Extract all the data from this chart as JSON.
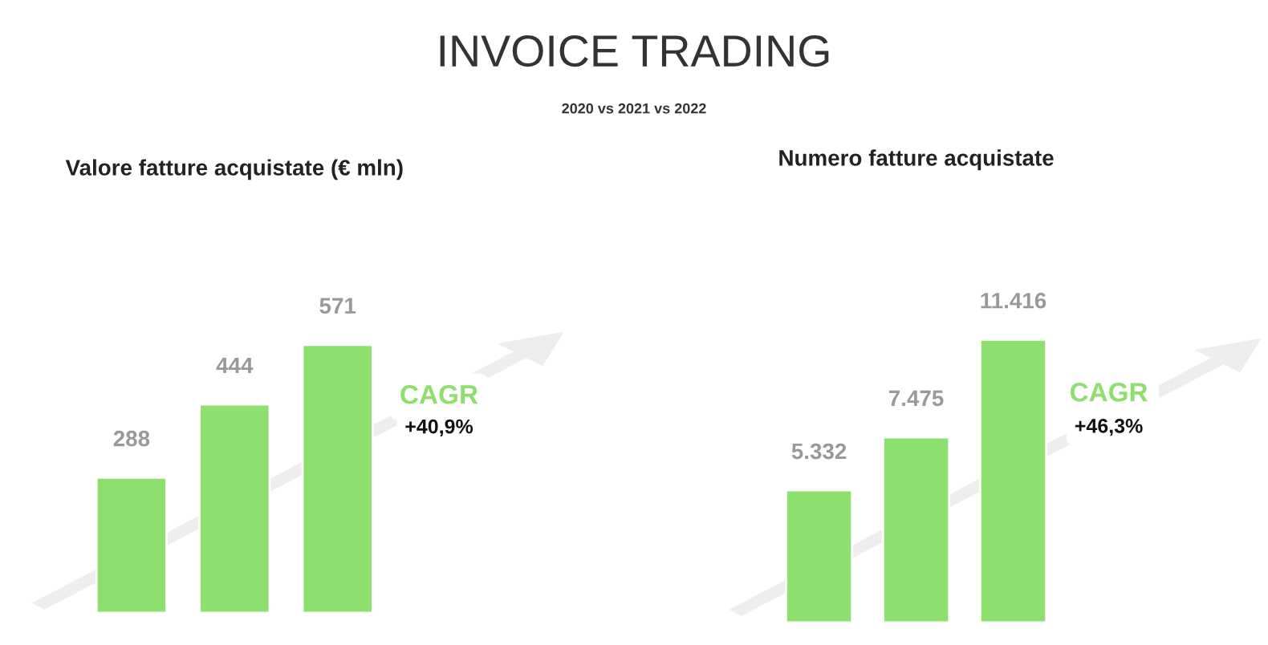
{
  "chart_data": [
    {
      "type": "other",
      "title": "INVOICE TRADING",
      "subtitle": "2020 vs 2021 vs 2022"
    },
    {
      "type": "bar",
      "title": "Valore fatture acquistate (€ mln)",
      "categories": [
        null,
        null,
        null
      ],
      "values": [
        288,
        444,
        571
      ],
      "color": "#8ee06e",
      "value_labels": [
        "288",
        "444",
        "571"
      ],
      "annotations": [
        "CAGR",
        "+40,9%"
      ],
      "tick_labels": false,
      "grid": false,
      "legend": false
    },
    {
      "type": "bar",
      "title": "Numero fatture acquistate",
      "categories": [
        null,
        null,
        null
      ],
      "values": [
        5332,
        7475,
        11416
      ],
      "color": "#8ee06e",
      "value_labels": [
        "5.332",
        "7.475",
        "11.416"
      ],
      "annotations": [
        "CAGR",
        "+46,3%"
      ],
      "tick_labels": false,
      "grid": false,
      "legend": false
    }
  ]
}
